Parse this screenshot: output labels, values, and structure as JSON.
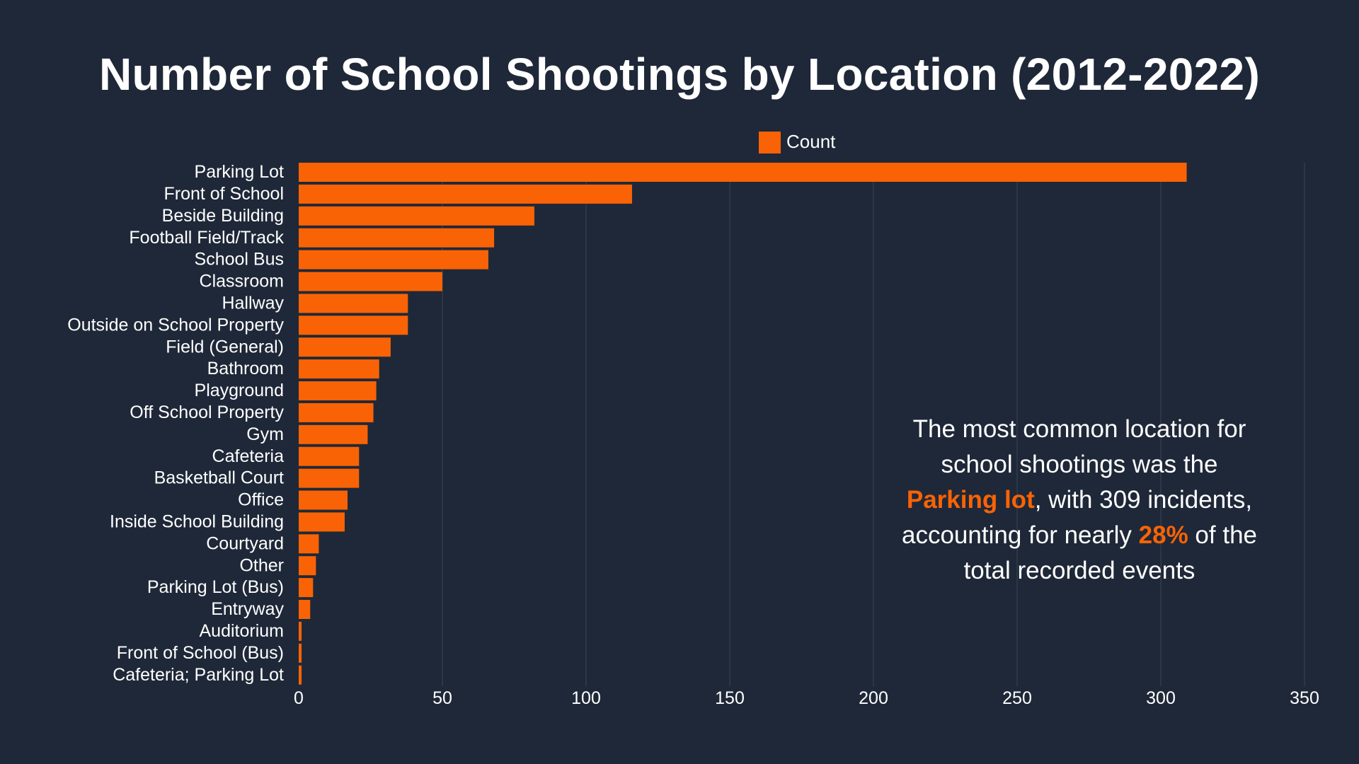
{
  "title": "Number of School Shootings by Location (2012-2022)",
  "colors": {
    "background": "#1f2838",
    "bar": "#f96305",
    "grid": "#3a4456",
    "text": "#ffffff"
  },
  "chart_data": {
    "type": "bar",
    "orientation": "horizontal",
    "title": "Number of School Shootings by Location (2012-2022)",
    "xlabel": "",
    "ylabel": "",
    "xlim": [
      0,
      350
    ],
    "xticks": [
      0,
      50,
      100,
      150,
      200,
      250,
      300,
      350
    ],
    "grid": true,
    "legend_position": "top-center",
    "categories": [
      "Parking Lot",
      "Front of School",
      "Beside Building",
      "Football Field/Track",
      "School Bus",
      "Classroom",
      "Hallway",
      "Outside on School Property",
      "Field (General)",
      "Bathroom",
      "Playground",
      "Off School Property",
      "Gym",
      "Cafeteria",
      "Basketball Court",
      "Office",
      "Inside School Building",
      "Courtyard",
      "Other",
      "Parking Lot (Bus)",
      "Entryway",
      "Auditorium",
      "Front of School (Bus)",
      "Cafeteria; Parking Lot"
    ],
    "series": [
      {
        "name": "Count",
        "values": [
          309,
          116,
          82,
          68,
          66,
          50,
          38,
          38,
          32,
          28,
          27,
          26,
          24,
          21,
          21,
          17,
          16,
          7,
          6,
          5,
          4,
          1,
          1,
          1
        ]
      }
    ]
  },
  "annotation": {
    "line1": "The most common location for",
    "line2": "school shootings was the",
    "highlight1": "Parking lot",
    "line3_rest": ", with 309 incidents,",
    "line4_pre": "accounting for nearly ",
    "highlight2": "28%",
    "line4_post": " of the",
    "line5": "total recorded events"
  }
}
